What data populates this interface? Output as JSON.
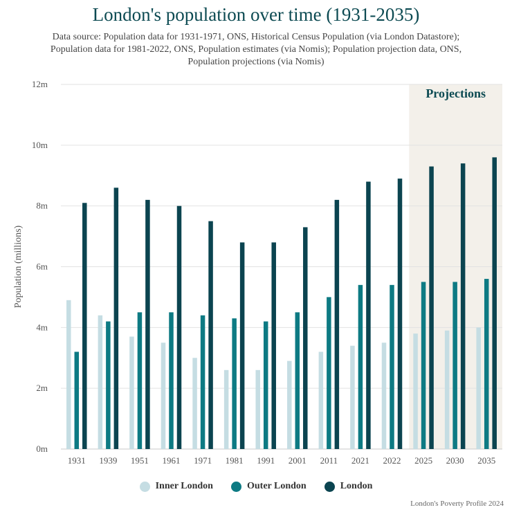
{
  "title": "London's population over time (1931-2035)",
  "subtitle": "Data source: Population data for 1931-1971, ONS, Historical Census Population (via London Datastore); Population data for 1981-2022, ONS, Population estimates (via Nomis); Population projection data, ONS, Population projections (via Nomis)",
  "footer": "London's Poverty Profile 2024",
  "colors": {
    "inner": "#c5dde3",
    "outer": "#0d7a83",
    "london": "#0b4450",
    "projection_bg": "#f3f0ea",
    "title": "#0c4a52"
  },
  "chart_data": {
    "type": "bar",
    "title": "London's population over time (1931-2035)",
    "ylabel": "Population (millions)",
    "ylim": [
      0,
      12
    ],
    "yticks": [
      "0m",
      "2m",
      "4m",
      "6m",
      "8m",
      "10m",
      "12m"
    ],
    "categories": [
      "1931",
      "1939",
      "1951",
      "1961",
      "1971",
      "1981",
      "1991",
      "2001",
      "2011",
      "2021",
      "2022",
      "2025",
      "2030",
      "2035"
    ],
    "series": [
      {
        "name": "Inner London",
        "values": [
          4.9,
          4.4,
          3.7,
          3.5,
          3.0,
          2.6,
          2.6,
          2.9,
          3.2,
          3.4,
          3.5,
          3.8,
          3.9,
          4.0
        ]
      },
      {
        "name": "Outer London",
        "values": [
          3.2,
          4.2,
          4.5,
          4.5,
          4.4,
          4.3,
          4.2,
          4.5,
          5.0,
          5.4,
          5.4,
          5.5,
          5.5,
          5.6
        ]
      },
      {
        "name": "London",
        "values": [
          8.1,
          8.6,
          8.2,
          8.0,
          7.5,
          6.8,
          6.8,
          7.3,
          8.2,
          8.8,
          8.9,
          9.3,
          9.4,
          9.6
        ]
      }
    ],
    "projection_label": "Projections",
    "projection_categories": [
      "2025",
      "2030",
      "2035"
    ],
    "legend": "bottom",
    "grid": true
  }
}
